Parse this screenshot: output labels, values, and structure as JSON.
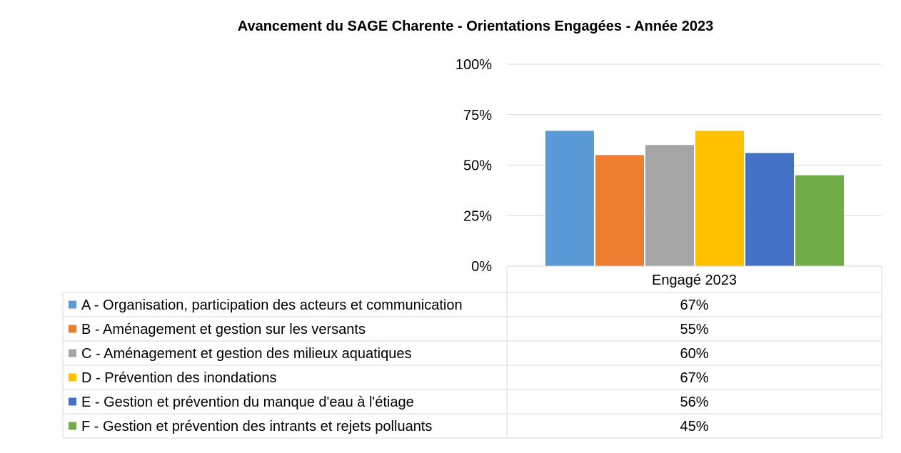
{
  "chart_data": {
    "type": "bar",
    "title": "Avancement du SAGE Charente -  Orientations Engagées - Année 2023",
    "categories": [
      "Engagé 2023"
    ],
    "ylim": [
      0,
      1
    ],
    "yticks": [
      {
        "value": 0,
        "label": "0%"
      },
      {
        "value": 0.25,
        "label": "25%"
      },
      {
        "value": 0.5,
        "label": "50%"
      },
      {
        "value": 0.75,
        "label": "75%"
      },
      {
        "value": 1,
        "label": "100%"
      }
    ],
    "grid": true,
    "legend": "data-table-left",
    "series": [
      {
        "key": "a",
        "name": "A - Organisation, participation des acteurs et communication",
        "value": 0.67,
        "label": "67%",
        "color": "#5b9bd5"
      },
      {
        "key": "b",
        "name": "B - Aménagement et gestion sur les versants",
        "value": 0.55,
        "label": "55%",
        "color": "#ed7d31"
      },
      {
        "key": "c",
        "name": "C - Aménagement et gestion des milieux aquatiques",
        "value": 0.6,
        "label": "60%",
        "color": "#a5a5a5"
      },
      {
        "key": "d",
        "name": "D - Prévention des inondations",
        "value": 0.67,
        "label": "67%",
        "color": "#ffc000"
      },
      {
        "key": "e",
        "name": "E - Gestion et prévention du manque d'eau à l'étiage",
        "value": 0.56,
        "label": "56%",
        "color": "#4472c4"
      },
      {
        "key": "f",
        "name": "F - Gestion et prévention des intrants et rejets polluants",
        "value": 0.45,
        "label": "45%",
        "color": "#70ad47"
      }
    ]
  }
}
